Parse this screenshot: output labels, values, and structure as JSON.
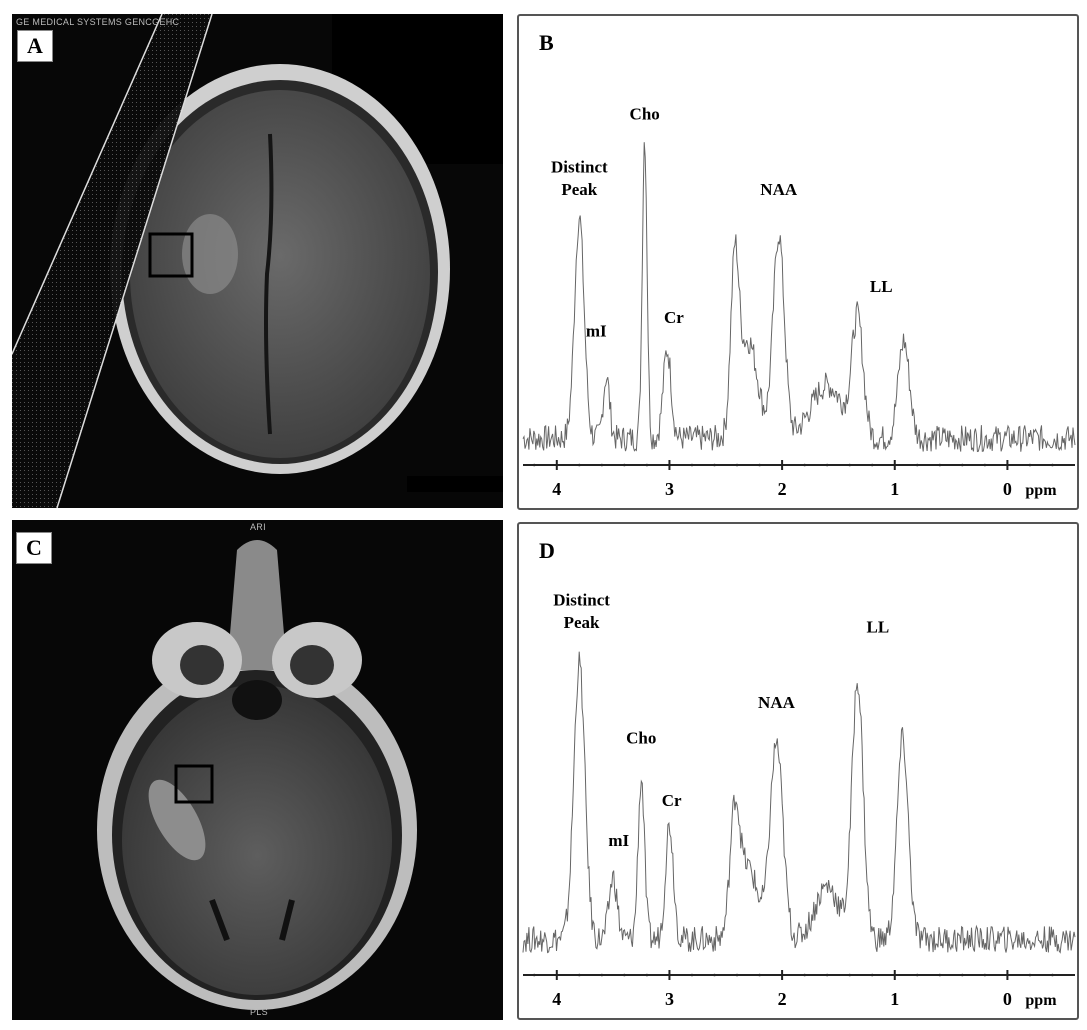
{
  "panels": {
    "A": {
      "label": "A",
      "header_text": "GE MEDICAL SYSTEMS GENCGEHC"
    },
    "B": {
      "label": "B"
    },
    "C": {
      "label": "C",
      "top_text": "ARI",
      "bottom_text": "PLS"
    },
    "D": {
      "label": "D"
    }
  },
  "chart_data": [
    {
      "panel": "B",
      "type": "line",
      "xlabel": "ppm",
      "xlim": [
        4.3,
        -0.6
      ],
      "ylim": [
        0,
        1
      ],
      "x_ticks": [
        "4",
        "3",
        "2",
        "1",
        "0"
      ],
      "x_tick_values": [
        4,
        3,
        2,
        1,
        0
      ],
      "grid": false,
      "baseline": 0.06,
      "peaks": [
        {
          "ppm": 3.8,
          "height": 0.5,
          "width": 0.06
        },
        {
          "ppm": 3.56,
          "height": 0.14,
          "width": 0.04
        },
        {
          "ppm": 3.22,
          "height": 0.68,
          "width": 0.03
        },
        {
          "ppm": 3.02,
          "height": 0.2,
          "width": 0.05
        },
        {
          "ppm": 2.42,
          "height": 0.36,
          "width": 0.05
        },
        {
          "ppm": 2.3,
          "height": 0.22,
          "width": 0.12
        },
        {
          "ppm": 2.03,
          "height": 0.46,
          "width": 0.07
        },
        {
          "ppm": 1.6,
          "height": 0.12,
          "width": 0.2
        },
        {
          "ppm": 1.33,
          "height": 0.26,
          "width": 0.07
        },
        {
          "ppm": 0.92,
          "height": 0.22,
          "width": 0.07
        }
      ],
      "annotations": [
        {
          "text": "Distinct",
          "ppm": 3.8,
          "y": 0.66
        },
        {
          "text": "Peak",
          "ppm": 3.8,
          "y": 0.61
        },
        {
          "text": "mI",
          "ppm": 3.65,
          "y": 0.29
        },
        {
          "text": "Cho",
          "ppm": 3.22,
          "y": 0.78
        },
        {
          "text": "Cr",
          "ppm": 2.96,
          "y": 0.32
        },
        {
          "text": "NAA",
          "ppm": 2.03,
          "y": 0.61
        },
        {
          "text": "LL",
          "ppm": 1.12,
          "y": 0.39
        }
      ]
    },
    {
      "panel": "D",
      "type": "line",
      "xlabel": "ppm",
      "xlim": [
        4.3,
        -0.6
      ],
      "ylim": [
        0,
        1
      ],
      "x_ticks": [
        "4",
        "3",
        "2",
        "1",
        "0"
      ],
      "x_tick_values": [
        4,
        3,
        2,
        1,
        0
      ],
      "grid": false,
      "baseline": 0.08,
      "peaks": [
        {
          "ppm": 3.8,
          "height": 0.62,
          "width": 0.07
        },
        {
          "ppm": 3.5,
          "height": 0.14,
          "width": 0.05
        },
        {
          "ppm": 3.25,
          "height": 0.36,
          "width": 0.04
        },
        {
          "ppm": 3.0,
          "height": 0.26,
          "width": 0.05
        },
        {
          "ppm": 2.42,
          "height": 0.26,
          "width": 0.06
        },
        {
          "ppm": 2.3,
          "height": 0.16,
          "width": 0.12
        },
        {
          "ppm": 2.05,
          "height": 0.44,
          "width": 0.08
        },
        {
          "ppm": 1.6,
          "height": 0.12,
          "width": 0.15
        },
        {
          "ppm": 1.33,
          "height": 0.58,
          "width": 0.07
        },
        {
          "ppm": 0.93,
          "height": 0.45,
          "width": 0.07
        }
      ],
      "annotations": [
        {
          "text": "Distinct",
          "ppm": 3.78,
          "y": 0.83
        },
        {
          "text": "Peak",
          "ppm": 3.78,
          "y": 0.78
        },
        {
          "text": "mI",
          "ppm": 3.45,
          "y": 0.29
        },
        {
          "text": "Cho",
          "ppm": 3.25,
          "y": 0.52
        },
        {
          "text": "Cr",
          "ppm": 2.98,
          "y": 0.38
        },
        {
          "text": "NAA",
          "ppm": 2.05,
          "y": 0.6
        },
        {
          "text": "LL",
          "ppm": 1.15,
          "y": 0.77
        }
      ]
    }
  ]
}
